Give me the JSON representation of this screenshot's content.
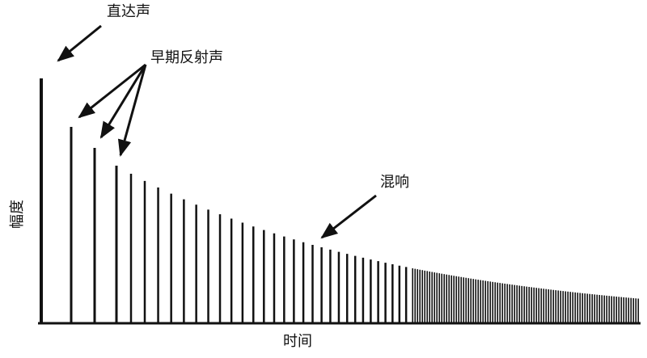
{
  "labels": {
    "direct": "直达声",
    "early": "早期反射声",
    "reverb": "混响",
    "y_axis": "幅度",
    "x_axis": "时间"
  }
}
